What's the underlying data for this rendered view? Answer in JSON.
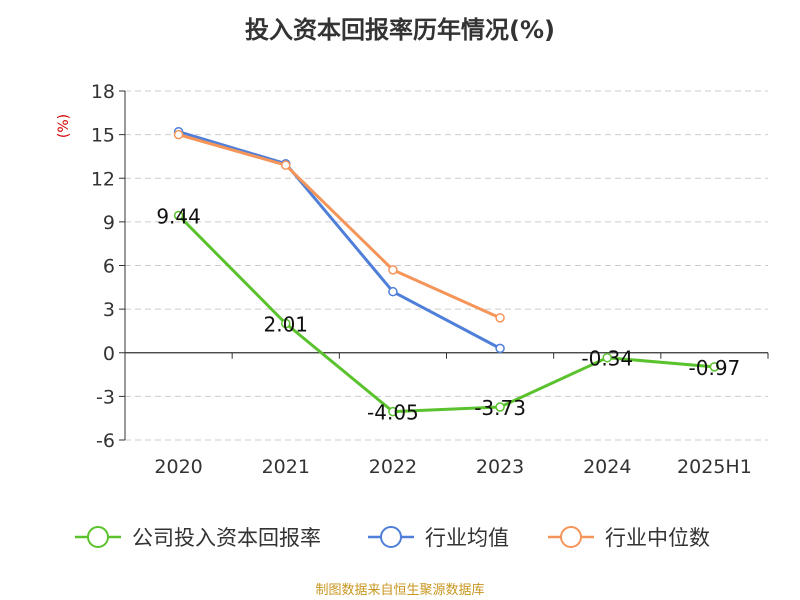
{
  "title": "投入资本回报率历年情况(%)",
  "source": "制图数据来自恒生聚源数据库",
  "chart_data": {
    "type": "line",
    "title": "投入资本回报率历年情况(%)",
    "ylabel": "(%)",
    "xlabel": "",
    "categories": [
      "2020",
      "2021",
      "2022",
      "2023",
      "2024",
      "2025H1"
    ],
    "ylim": [
      -6,
      18
    ],
    "yticks": [
      18,
      15,
      12,
      9,
      6,
      3,
      0,
      -3,
      -6
    ],
    "grid": true,
    "legend_position": "bottom",
    "series": [
      {
        "name": "公司投入资本回报率",
        "color": "#5ac22d",
        "values": [
          9.44,
          2.01,
          -4.05,
          -3.73,
          -0.34,
          -0.97
        ],
        "labels": [
          "9.44",
          "2.01",
          "-4.05",
          "-3.73",
          "-0.34",
          "-0.97"
        ]
      },
      {
        "name": "行业均值",
        "color": "#4f7fd9",
        "values": [
          15.2,
          13.0,
          4.2,
          0.3,
          null,
          null
        ]
      },
      {
        "name": "行业中位数",
        "color": "#f5955a",
        "values": [
          15.0,
          12.9,
          5.7,
          2.4,
          null,
          null
        ]
      }
    ]
  }
}
